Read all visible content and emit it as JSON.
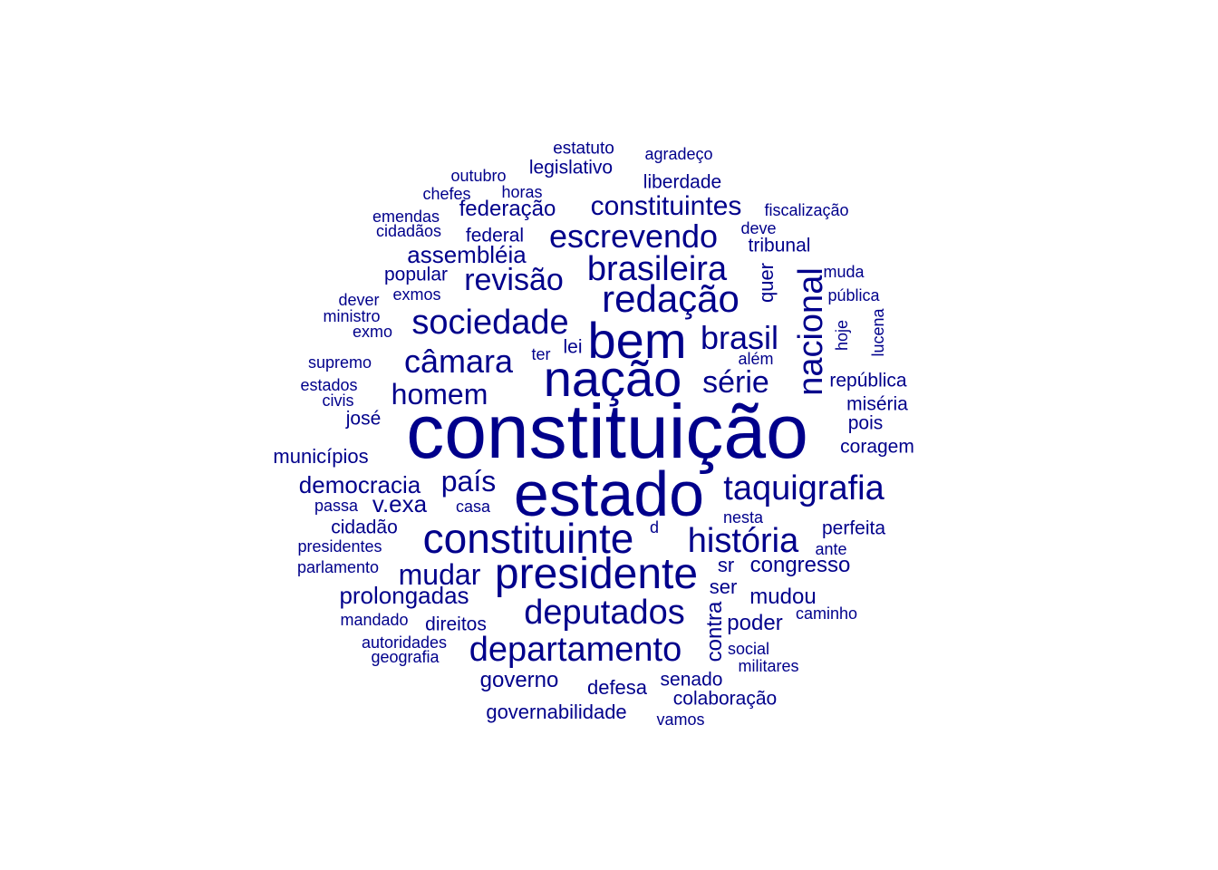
{
  "color": "#00008B",
  "words": [
    {
      "text": "constituição",
      "size": 84
    },
    {
      "text": "estado",
      "size": 70
    },
    {
      "text": "nação",
      "size": 56
    },
    {
      "text": "bem",
      "size": 56
    },
    {
      "text": "presidente",
      "size": 48
    },
    {
      "text": "constituinte",
      "size": 46
    },
    {
      "text": "redação",
      "size": 42
    },
    {
      "text": "departamento",
      "size": 38
    },
    {
      "text": "deputados",
      "size": 38
    },
    {
      "text": "história",
      "size": 38
    },
    {
      "text": "nacional",
      "size": 38
    },
    {
      "text": "taquigrafia",
      "size": 38
    },
    {
      "text": "brasileira",
      "size": 38
    },
    {
      "text": "sociedade",
      "size": 38
    },
    {
      "text": "câmara",
      "size": 36
    },
    {
      "text": "escrevendo",
      "size": 36
    },
    {
      "text": "brasil",
      "size": 36
    },
    {
      "text": "revisão",
      "size": 34
    },
    {
      "text": "série",
      "size": 34
    },
    {
      "text": "homem",
      "size": 32
    },
    {
      "text": "mudar",
      "size": 32
    },
    {
      "text": "país",
      "size": 32
    },
    {
      "text": "constituintes",
      "size": 30
    },
    {
      "text": "democracia",
      "size": 26
    },
    {
      "text": "assembléia",
      "size": 26
    },
    {
      "text": "prolongadas",
      "size": 26
    },
    {
      "text": "v.exa",
      "size": 26
    },
    {
      "text": "congresso",
      "size": 24
    },
    {
      "text": "contra",
      "size": 24
    },
    {
      "text": "federação",
      "size": 24
    },
    {
      "text": "mudou",
      "size": 24
    },
    {
      "text": "poder",
      "size": 24
    },
    {
      "text": "governo",
      "size": 24
    },
    {
      "text": "quer",
      "size": 22
    },
    {
      "text": "sr",
      "size": 22
    },
    {
      "text": "ser",
      "size": 22
    },
    {
      "text": "defesa",
      "size": 22
    },
    {
      "text": "municípios",
      "size": 22
    },
    {
      "text": "governabilidade",
      "size": 22
    },
    {
      "text": "legislativo",
      "size": 21
    },
    {
      "text": "liberdade",
      "size": 21
    },
    {
      "text": "direitos",
      "size": 21
    },
    {
      "text": "senado",
      "size": 21
    },
    {
      "text": "colaboração",
      "size": 21
    },
    {
      "text": "república",
      "size": 21
    },
    {
      "text": "miséria",
      "size": 21
    },
    {
      "text": "perfeita",
      "size": 21
    },
    {
      "text": "coragem",
      "size": 21
    },
    {
      "text": "popular",
      "size": 21
    },
    {
      "text": "cidadão",
      "size": 21
    },
    {
      "text": "federal",
      "size": 21
    },
    {
      "text": "tribunal",
      "size": 21
    },
    {
      "text": "josé",
      "size": 21
    },
    {
      "text": "pois",
      "size": 21
    },
    {
      "text": "lei",
      "size": 21
    },
    {
      "text": "estatuto",
      "size": 19
    },
    {
      "text": "agradeço",
      "size": 18
    },
    {
      "text": "outubro",
      "size": 18
    },
    {
      "text": "chefes",
      "size": 18
    },
    {
      "text": "horas",
      "size": 18
    },
    {
      "text": "emendas",
      "size": 18
    },
    {
      "text": "fiscalização",
      "size": 18
    },
    {
      "text": "cidadãos",
      "size": 18
    },
    {
      "text": "deve",
      "size": 18
    },
    {
      "text": "muda",
      "size": 18
    },
    {
      "text": "exmos",
      "size": 18
    },
    {
      "text": "pública",
      "size": 18
    },
    {
      "text": "dever",
      "size": 18
    },
    {
      "text": "ministro",
      "size": 18
    },
    {
      "text": "hoje",
      "size": 18
    },
    {
      "text": "lucena",
      "size": 18
    },
    {
      "text": "exmo",
      "size": 18
    },
    {
      "text": "ter",
      "size": 18
    },
    {
      "text": "além",
      "size": 18
    },
    {
      "text": "supremo",
      "size": 18
    },
    {
      "text": "estados",
      "size": 18
    },
    {
      "text": "civis",
      "size": 18
    },
    {
      "text": "passa",
      "size": 18
    },
    {
      "text": "casa",
      "size": 18
    },
    {
      "text": "nesta",
      "size": 18
    },
    {
      "text": "d",
      "size": 18
    },
    {
      "text": "presidentes",
      "size": 18
    },
    {
      "text": "ante",
      "size": 18
    },
    {
      "text": "parlamento",
      "size": 18
    },
    {
      "text": "mandado",
      "size": 18
    },
    {
      "text": "caminho",
      "size": 18
    },
    {
      "text": "autoridades",
      "size": 18
    },
    {
      "text": "geografia",
      "size": 18
    },
    {
      "text": "social",
      "size": 18
    },
    {
      "text": "militares",
      "size": 18
    },
    {
      "text": "vamos",
      "size": 18
    }
  ]
}
